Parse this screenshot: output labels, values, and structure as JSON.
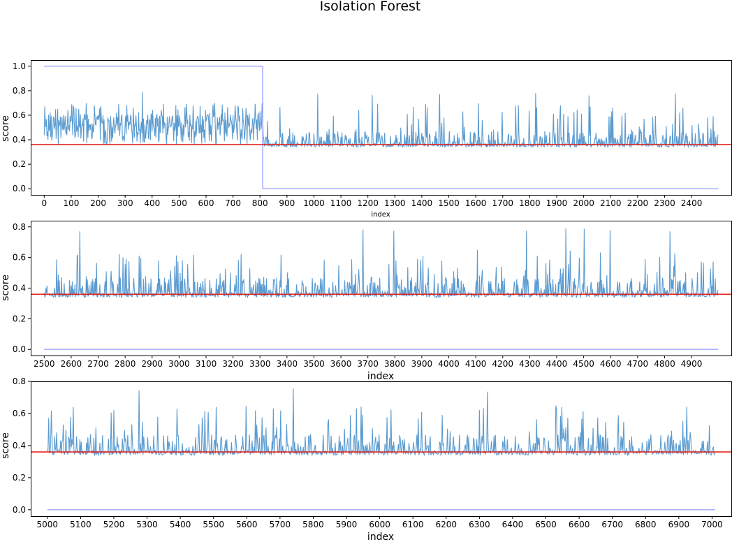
{
  "figure": {
    "title": "Isolation Forest"
  },
  "colors": {
    "score": "#5b9bd0",
    "label": "#9fa6ff",
    "threshold": "#e0211d",
    "axes": "#000000"
  },
  "chart_data": [
    {
      "type": "line",
      "title": "",
      "xlabel": "index",
      "ylabel": "score",
      "xlim": [
        -50,
        2550
      ],
      "ylim": [
        -0.05,
        1.05
      ],
      "xticks": [
        0,
        100,
        200,
        300,
        400,
        500,
        600,
        700,
        800,
        900,
        1000,
        1100,
        1200,
        1300,
        1400,
        1500,
        1600,
        1700,
        1800,
        1900,
        2000,
        2100,
        2200,
        2300,
        2400
      ],
      "yticks": [
        0.0,
        0.2,
        0.4,
        0.6,
        0.8,
        1.0
      ],
      "grid": false,
      "series": [
        {
          "kind": "score",
          "x_start": 0,
          "x_end": 2499,
          "baseline": 0.34,
          "typical_max": 0.7,
          "peak_max": 0.79,
          "anomaly_region": [
            0,
            810
          ],
          "anomaly_level": 0.5
        },
        {
          "kind": "label",
          "steps": [
            [
              0,
              1.0
            ],
            [
              810,
              1.0
            ],
            [
              810,
              0.0
            ],
            [
              2499,
              0.0
            ]
          ]
        },
        {
          "kind": "threshold",
          "y": 0.36
        }
      ]
    },
    {
      "type": "line",
      "title": "",
      "xlabel": "index",
      "ylabel": "score",
      "xlim": [
        2450,
        5050
      ],
      "ylim": [
        -0.04,
        0.84
      ],
      "xticks": [
        2500,
        2600,
        2700,
        2800,
        2900,
        3000,
        3100,
        3200,
        3300,
        3400,
        3500,
        3600,
        3700,
        3800,
        3900,
        4000,
        4100,
        4200,
        4300,
        4400,
        4500,
        4600,
        4700,
        4800,
        4900
      ],
      "yticks": [
        0.0,
        0.2,
        0.4,
        0.6,
        0.8
      ],
      "grid": false,
      "series": [
        {
          "kind": "score",
          "x_start": 2500,
          "x_end": 4999,
          "baseline": 0.34,
          "typical_max": 0.65,
          "peak_max": 0.8
        },
        {
          "kind": "label",
          "steps": [
            [
              2500,
              0.0
            ],
            [
              4999,
              0.0
            ]
          ]
        },
        {
          "kind": "threshold",
          "y": 0.36
        }
      ]
    },
    {
      "type": "line",
      "title": "",
      "xlabel": "index",
      "ylabel": "score",
      "xlim": [
        4950,
        7060
      ],
      "ylim": [
        -0.04,
        0.8
      ],
      "xticks": [
        5000,
        5100,
        5200,
        5300,
        5400,
        5500,
        5600,
        5700,
        5800,
        5900,
        6000,
        6100,
        6200,
        6300,
        6400,
        6500,
        6600,
        6700,
        6800,
        6900,
        7000
      ],
      "yticks": [
        0.0,
        0.2,
        0.4,
        0.6,
        0.8
      ],
      "grid": false,
      "series": [
        {
          "kind": "score",
          "x_start": 5000,
          "x_end": 7009,
          "baseline": 0.34,
          "typical_max": 0.65,
          "peak_max": 0.76
        },
        {
          "kind": "label",
          "steps": [
            [
              5000,
              0.0
            ],
            [
              7009,
              0.0
            ]
          ]
        },
        {
          "kind": "threshold",
          "y": 0.36
        }
      ]
    }
  ]
}
